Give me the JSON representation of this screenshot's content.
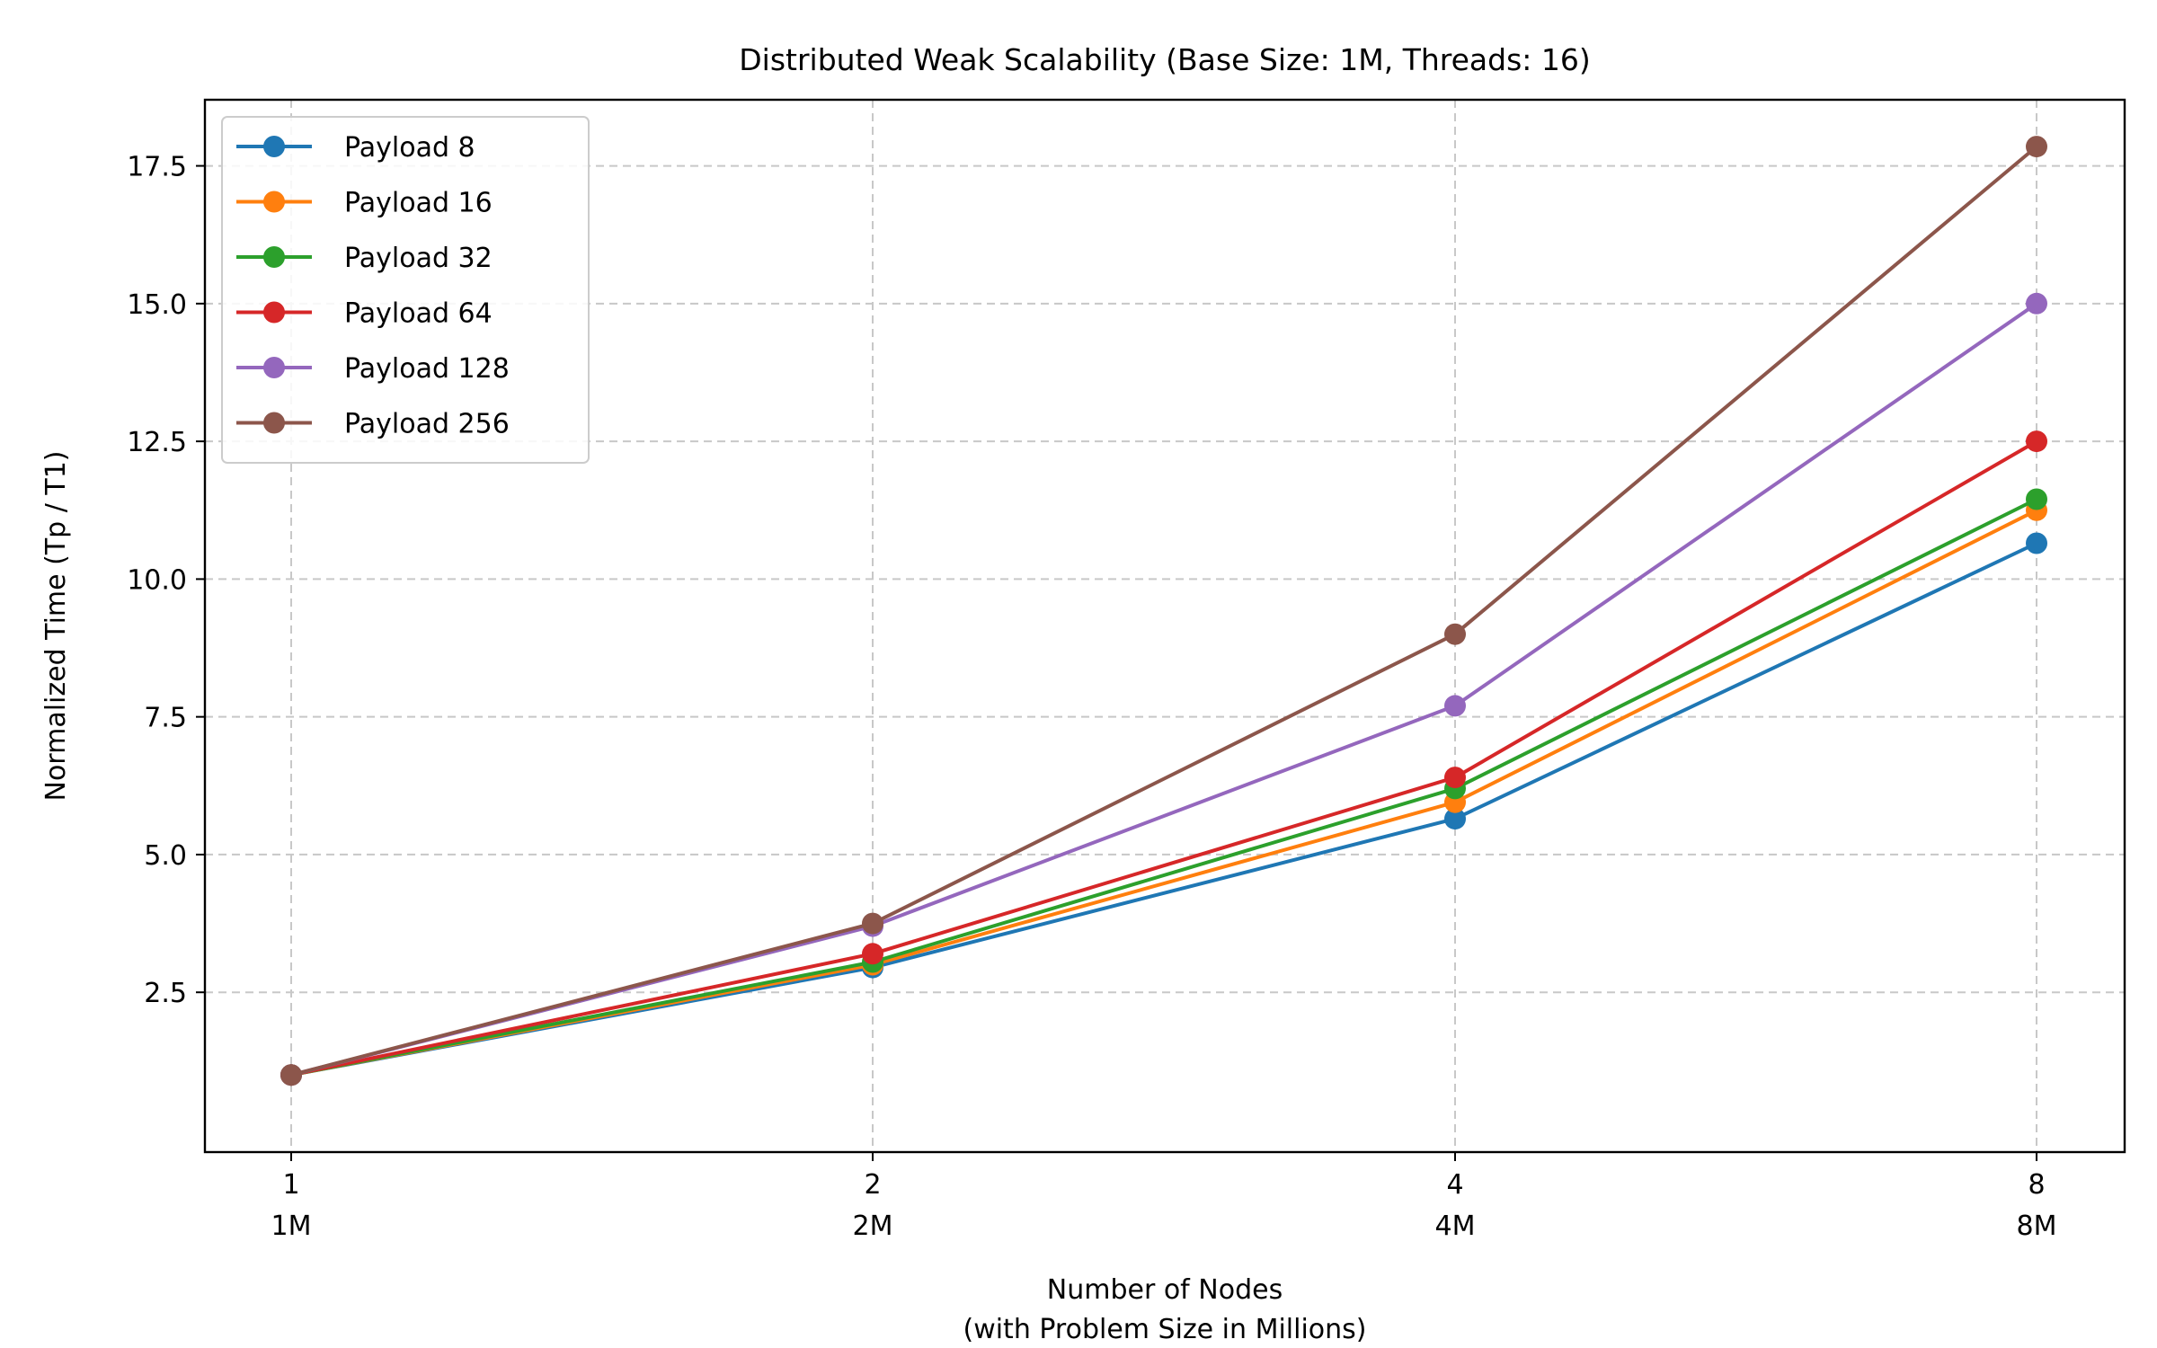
{
  "chart_data": {
    "type": "line",
    "title": "Distributed Weak Scalability (Base Size: 1M, Threads: 16)",
    "xlabel_line1": "Number of Nodes",
    "xlabel_line2": "(with Problem Size in Millions)",
    "ylabel": "Normalized Time (Tp / T1)",
    "x": [
      1,
      2,
      4,
      8
    ],
    "xtick_labels": [
      "1",
      "2",
      "4",
      "8"
    ],
    "xtick_sublabels": [
      "1M",
      "2M",
      "4M",
      "8M"
    ],
    "x_scale": "log2",
    "yticks": [
      2.5,
      5.0,
      7.5,
      10.0,
      12.5,
      15.0,
      17.5
    ],
    "ytick_labels": [
      "2.5",
      "5.0",
      "7.5",
      "10.0",
      "12.5",
      "15.0",
      "17.5"
    ],
    "ylim": [
      -0.4,
      18.7
    ],
    "grid": true,
    "legend_position": "top-left",
    "series": [
      {
        "name": "Payload 8",
        "color": "#1f77b4",
        "values": [
          1.0,
          2.95,
          5.65,
          10.65
        ]
      },
      {
        "name": "Payload 16",
        "color": "#ff7f0e",
        "values": [
          1.0,
          3.0,
          5.95,
          11.25
        ]
      },
      {
        "name": "Payload 32",
        "color": "#2ca02c",
        "values": [
          1.0,
          3.05,
          6.2,
          11.45
        ]
      },
      {
        "name": "Payload 64",
        "color": "#d62728",
        "values": [
          1.0,
          3.2,
          6.4,
          12.5
        ]
      },
      {
        "name": "Payload 128",
        "color": "#9467bd",
        "values": [
          1.0,
          3.7,
          7.7,
          15.0
        ]
      },
      {
        "name": "Payload 256",
        "color": "#8c564b",
        "values": [
          1.0,
          3.75,
          9.0,
          17.85
        ]
      }
    ]
  }
}
